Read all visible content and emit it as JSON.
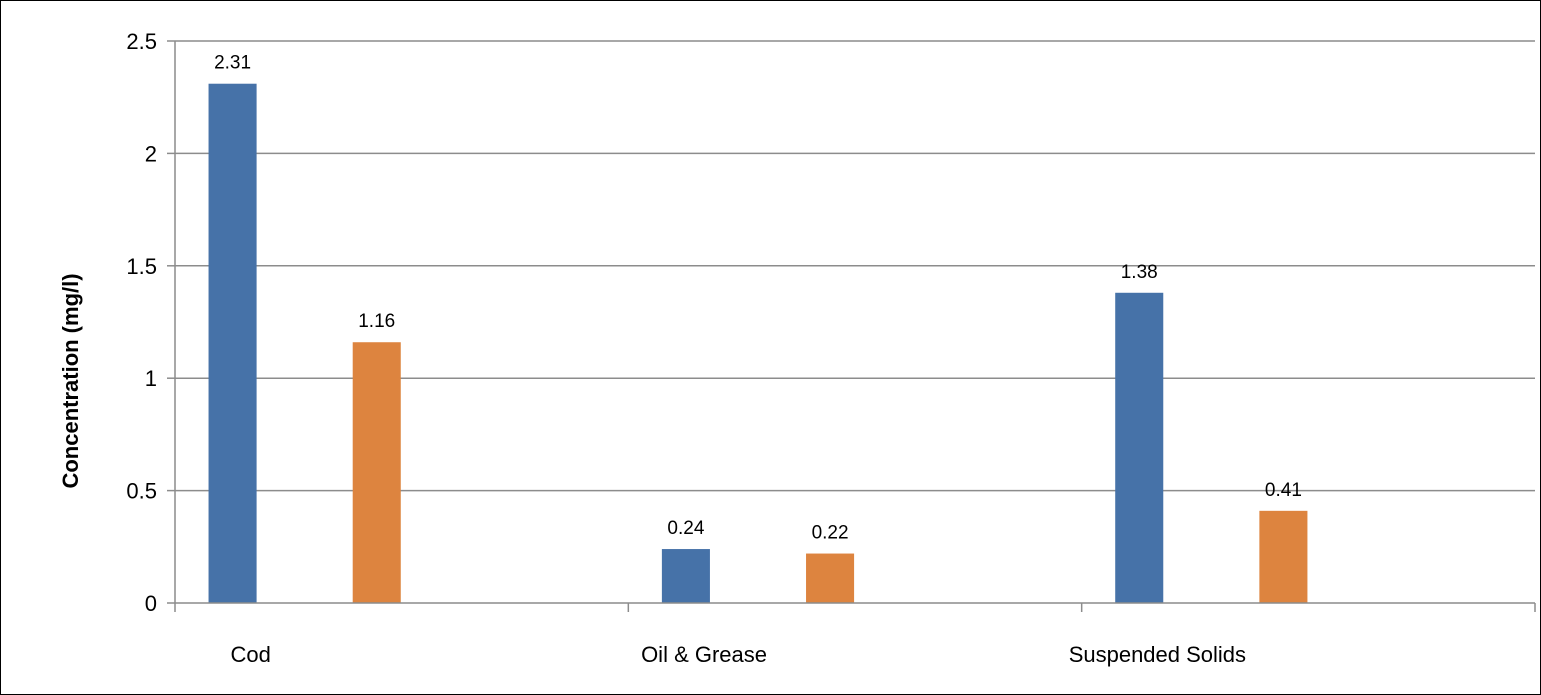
{
  "chart_data": {
    "type": "bar",
    "categories": [
      "Cod",
      "Oil & Grease",
      "Suspended Solids"
    ],
    "series": [
      {
        "values": [
          2.31,
          0.24,
          1.38
        ],
        "color": "#4672a8"
      },
      {
        "values": [
          1.16,
          0.22,
          0.41
        ],
        "color": "#dd843f"
      }
    ],
    "data_labels": [
      [
        "2.31",
        "0.24",
        "1.38"
      ],
      [
        "1.16",
        "0.22",
        "0.41"
      ]
    ],
    "yticks": [
      "0",
      "0.5",
      "1",
      "1.5",
      "2",
      "2.5"
    ],
    "ytick_values": [
      0,
      0.5,
      1,
      1.5,
      2,
      2.5
    ],
    "ylabel": "Concentration (mg/l)",
    "xlabel": "",
    "title": "",
    "ylim": [
      0,
      2.5
    ],
    "grid": true,
    "gridline_color": "#8c8c8c",
    "legend": "none"
  }
}
